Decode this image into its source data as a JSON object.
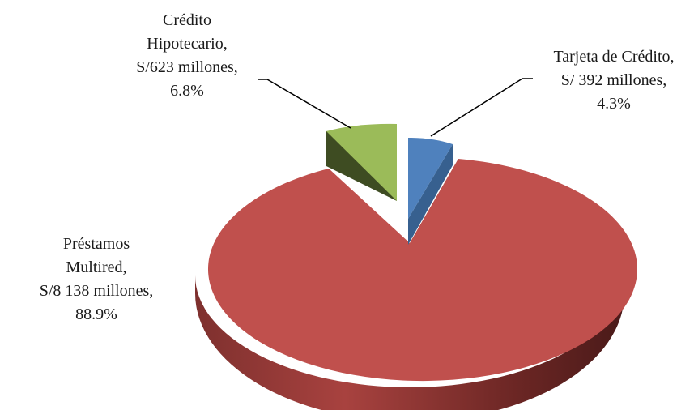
{
  "chart_data": {
    "type": "pie",
    "title": "",
    "slices": [
      {
        "name": "Préstamos Multired",
        "value_text": "S/8 138 millones",
        "amount": 8138,
        "percent": 88.9,
        "percent_text": "88.9%",
        "color": "#C0504D",
        "label_lines": [
          "Préstamos",
          "Multired,",
          "S/8 138 millones,",
          "88.9%"
        ]
      },
      {
        "name": "Crédito Hipotecario",
        "value_text": "S/623 millones",
        "amount": 623,
        "percent": 6.8,
        "percent_text": "6.8%",
        "color": "#9BBB59",
        "label_lines": [
          "Crédito",
          "Hipotecario,",
          "S/623 millones,",
          "6.8%"
        ]
      },
      {
        "name": "Tarjeta de Crédito",
        "value_text": "S/ 392 millones",
        "amount": 392,
        "percent": 4.3,
        "percent_text": "4.3%",
        "color": "#4F81BD",
        "label_lines": [
          "Tarjeta de Crédito,",
          "S/ 392 millones,",
          "4.3%"
        ]
      }
    ],
    "style": "3d-exploded-pie",
    "legend": "none"
  }
}
